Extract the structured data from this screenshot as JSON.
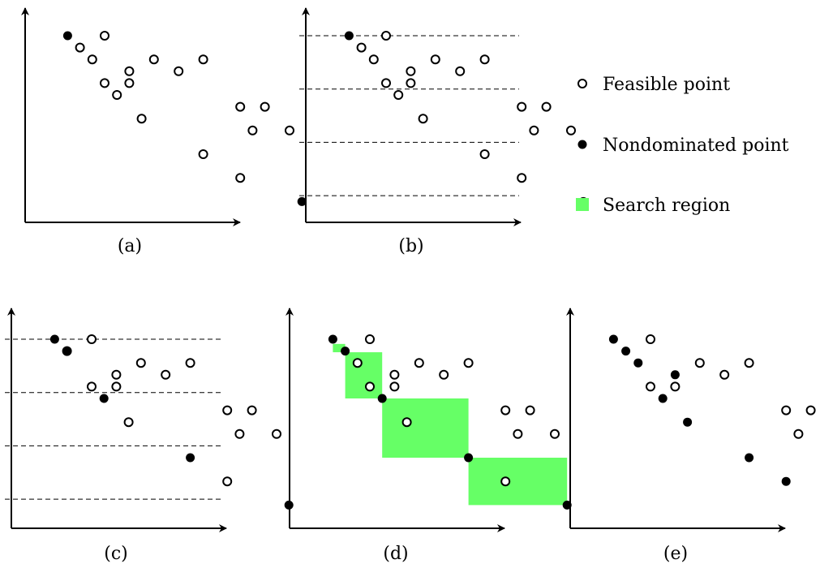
{
  "legend": {
    "feasible_label": "Feasible point",
    "nondominated_label": "Nondominated point",
    "region_label": "Search region",
    "region_color": "#66ff66"
  },
  "panels": [
    {
      "id": "a",
      "caption": "(a)",
      "feasible": [
        [
          5,
          0
        ],
        [
          9,
          2
        ],
        [
          13,
          2
        ],
        [
          3,
          1
        ],
        [
          4,
          2
        ],
        [
          7,
          3
        ],
        [
          11,
          3
        ],
        [
          5,
          4
        ],
        [
          7,
          4
        ],
        [
          6,
          5
        ],
        [
          16,
          6
        ],
        [
          18,
          6
        ],
        [
          8,
          7
        ],
        [
          17,
          8
        ],
        [
          20,
          8
        ],
        [
          13,
          10
        ],
        [
          16,
          12
        ]
      ],
      "nondominated": [
        [
          2,
          0
        ],
        [
          21,
          14
        ]
      ],
      "dashed_rows": [],
      "regions": []
    },
    {
      "id": "b",
      "caption": "(b)",
      "feasible": [
        [
          5,
          0
        ],
        [
          9,
          2
        ],
        [
          13,
          2
        ],
        [
          3,
          1
        ],
        [
          4,
          2
        ],
        [
          7,
          3
        ],
        [
          11,
          3
        ],
        [
          5,
          4
        ],
        [
          7,
          4
        ],
        [
          6,
          5
        ],
        [
          16,
          6
        ],
        [
          18,
          6
        ],
        [
          8,
          7
        ],
        [
          17,
          8
        ],
        [
          20,
          8
        ],
        [
          13,
          10
        ],
        [
          16,
          12
        ]
      ],
      "nondominated": [
        [
          2,
          0
        ],
        [
          21,
          14
        ]
      ],
      "dashed_rows": [
        0,
        4.5,
        9,
        13.5
      ],
      "regions": []
    },
    {
      "id": "c",
      "caption": "(c)",
      "feasible": [
        [
          5,
          0
        ],
        [
          9,
          2
        ],
        [
          13,
          2
        ],
        [
          3,
          1
        ],
        [
          5,
          4
        ],
        [
          7,
          4
        ],
        [
          11,
          3
        ],
        [
          7,
          3
        ],
        [
          16,
          6
        ],
        [
          18,
          6
        ],
        [
          8,
          7
        ],
        [
          17,
          8
        ],
        [
          20,
          8
        ],
        [
          16,
          12
        ]
      ],
      "nondominated": [
        [
          2,
          0
        ],
        [
          3,
          1
        ],
        [
          6,
          5
        ],
        [
          13,
          10
        ],
        [
          21,
          14
        ]
      ],
      "dashed_rows": [
        0,
        4.5,
        9,
        13.5
      ],
      "regions": []
    },
    {
      "id": "d",
      "caption": "(d)",
      "feasible": [
        [
          5,
          0
        ],
        [
          9,
          2
        ],
        [
          13,
          2
        ],
        [
          4,
          2
        ],
        [
          7,
          3
        ],
        [
          11,
          3
        ],
        [
          5,
          4
        ],
        [
          7,
          4
        ],
        [
          16,
          6
        ],
        [
          18,
          6
        ],
        [
          8,
          7
        ],
        [
          17,
          8
        ],
        [
          20,
          8
        ],
        [
          16,
          12
        ]
      ],
      "nondominated": [
        [
          2,
          0
        ],
        [
          3,
          1
        ],
        [
          6,
          5
        ],
        [
          13,
          10
        ],
        [
          21,
          14
        ]
      ],
      "dashed_rows": [],
      "regions": [
        [
          2,
          0.4,
          3,
          1.1
        ],
        [
          3,
          1.1,
          6,
          5
        ],
        [
          6,
          5,
          13,
          10
        ],
        [
          13,
          10,
          21,
          14
        ]
      ]
    },
    {
      "id": "e",
      "caption": "(e)",
      "feasible": [
        [
          5,
          0
        ],
        [
          9,
          2
        ],
        [
          13,
          2
        ],
        [
          5,
          4
        ],
        [
          7,
          4
        ],
        [
          11,
          3
        ],
        [
          16,
          6
        ],
        [
          18,
          6
        ],
        [
          17,
          8
        ],
        [
          20,
          8
        ]
      ],
      "nondominated": [
        [
          2,
          0
        ],
        [
          3,
          1
        ],
        [
          4,
          2
        ],
        [
          6,
          5
        ],
        [
          7,
          3
        ],
        [
          8,
          7
        ],
        [
          13,
          10
        ],
        [
          16,
          12
        ],
        [
          21,
          14
        ]
      ],
      "dashed_rows": [],
      "regions": []
    }
  ]
}
